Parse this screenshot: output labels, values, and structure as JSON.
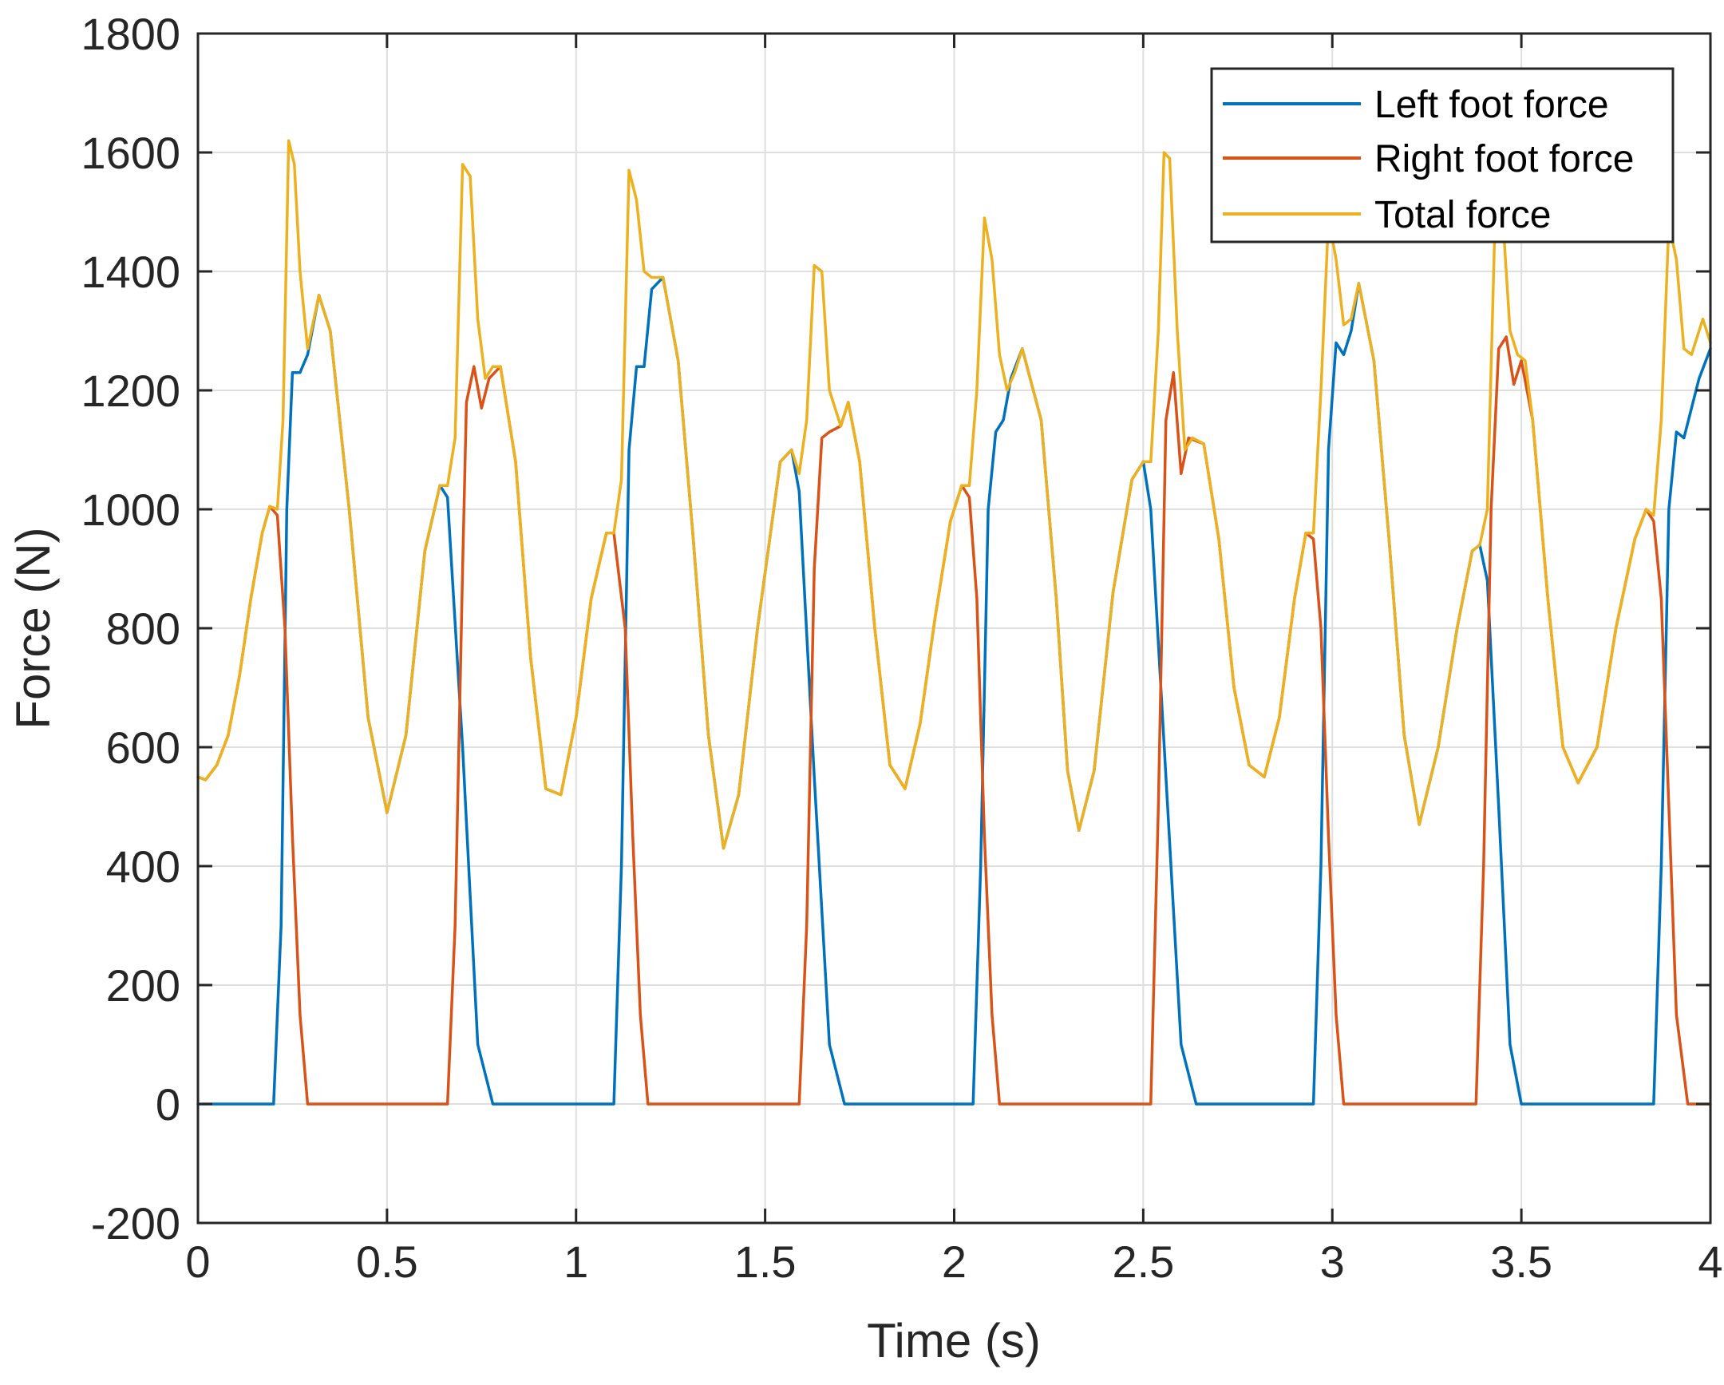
{
  "chart_data": {
    "type": "line",
    "title": "",
    "xlabel": "Time (s)",
    "ylabel": "Force (N)",
    "xlim": [
      0,
      4
    ],
    "ylim": [
      -200,
      1800
    ],
    "xticks": [
      0,
      0.5,
      1,
      1.5,
      2,
      2.5,
      3,
      3.5,
      4
    ],
    "xtick_labels": [
      "0",
      "0.5",
      "1",
      "1.5",
      "2",
      "2.5",
      "3",
      "3.5",
      "4"
    ],
    "yticks": [
      -200,
      0,
      200,
      400,
      600,
      800,
      1000,
      1200,
      1400,
      1600,
      1800
    ],
    "ytick_labels": [
      "-200",
      "0",
      "200",
      "400",
      "600",
      "800",
      "1000",
      "1200",
      "1400",
      "1600",
      "1800"
    ],
    "grid": true,
    "legend_position": "top-right",
    "series": [
      {
        "name": "Left foot force",
        "color": "#0072BD",
        "points": [
          [
            0.0,
            0
          ],
          [
            0.19,
            0
          ],
          [
            0.2,
            0
          ],
          [
            0.22,
            300
          ],
          [
            0.235,
            1000
          ],
          [
            0.25,
            1230
          ],
          [
            0.27,
            1230
          ],
          [
            0.29,
            1260
          ],
          [
            0.32,
            1360
          ],
          [
            0.35,
            1300
          ],
          [
            0.4,
            1000
          ],
          [
            0.45,
            650
          ],
          [
            0.5,
            490
          ],
          [
            0.55,
            620
          ],
          [
            0.6,
            930
          ],
          [
            0.64,
            1040
          ],
          [
            0.66,
            1020
          ],
          [
            0.7,
            600
          ],
          [
            0.74,
            100
          ],
          [
            0.78,
            0
          ],
          [
            1.1,
            0
          ],
          [
            1.12,
            400
          ],
          [
            1.14,
            1100
          ],
          [
            1.16,
            1240
          ],
          [
            1.18,
            1240
          ],
          [
            1.2,
            1370
          ],
          [
            1.23,
            1390
          ],
          [
            1.27,
            1250
          ],
          [
            1.31,
            950
          ],
          [
            1.35,
            620
          ],
          [
            1.39,
            430
          ],
          [
            1.43,
            520
          ],
          [
            1.48,
            800
          ],
          [
            1.54,
            1080
          ],
          [
            1.57,
            1100
          ],
          [
            1.59,
            1030
          ],
          [
            1.63,
            550
          ],
          [
            1.67,
            100
          ],
          [
            1.71,
            0
          ],
          [
            2.05,
            0
          ],
          [
            2.07,
            400
          ],
          [
            2.09,
            1000
          ],
          [
            2.11,
            1130
          ],
          [
            2.13,
            1150
          ],
          [
            2.15,
            1220
          ],
          [
            2.18,
            1270
          ],
          [
            2.23,
            1150
          ],
          [
            2.27,
            850
          ],
          [
            2.3,
            560
          ],
          [
            2.33,
            460
          ],
          [
            2.37,
            560
          ],
          [
            2.42,
            860
          ],
          [
            2.47,
            1050
          ],
          [
            2.5,
            1080
          ],
          [
            2.52,
            1000
          ],
          [
            2.56,
            550
          ],
          [
            2.6,
            100
          ],
          [
            2.64,
            0
          ],
          [
            2.95,
            0
          ],
          [
            2.97,
            400
          ],
          [
            2.99,
            1100
          ],
          [
            3.01,
            1280
          ],
          [
            3.03,
            1260
          ],
          [
            3.05,
            1300
          ],
          [
            3.07,
            1380
          ],
          [
            3.11,
            1250
          ],
          [
            3.15,
            950
          ],
          [
            3.19,
            620
          ],
          [
            3.23,
            470
          ],
          [
            3.28,
            600
          ],
          [
            3.33,
            800
          ],
          [
            3.37,
            930
          ],
          [
            3.39,
            940
          ],
          [
            3.41,
            880
          ],
          [
            3.44,
            500
          ],
          [
            3.47,
            100
          ],
          [
            3.5,
            0
          ],
          [
            3.85,
            0
          ],
          [
            3.87,
            400
          ],
          [
            3.89,
            1000
          ],
          [
            3.91,
            1130
          ],
          [
            3.93,
            1120
          ],
          [
            3.95,
            1170
          ],
          [
            3.97,
            1220
          ],
          [
            4.0,
            1270
          ]
        ]
      },
      {
        "name": "Right foot force",
        "color": "#D95319",
        "points": [
          [
            0.0,
            550
          ],
          [
            0.02,
            545
          ],
          [
            0.05,
            570
          ],
          [
            0.08,
            620
          ],
          [
            0.11,
            720
          ],
          [
            0.14,
            850
          ],
          [
            0.17,
            960
          ],
          [
            0.19,
            1005
          ],
          [
            0.21,
            990
          ],
          [
            0.23,
            800
          ],
          [
            0.25,
            450
          ],
          [
            0.27,
            150
          ],
          [
            0.29,
            0
          ],
          [
            0.66,
            0
          ],
          [
            0.68,
            300
          ],
          [
            0.7,
            900
          ],
          [
            0.71,
            1180
          ],
          [
            0.73,
            1240
          ],
          [
            0.75,
            1170
          ],
          [
            0.77,
            1220
          ],
          [
            0.8,
            1240
          ],
          [
            0.84,
            1080
          ],
          [
            0.88,
            750
          ],
          [
            0.92,
            530
          ],
          [
            0.96,
            520
          ],
          [
            1.0,
            650
          ],
          [
            1.04,
            850
          ],
          [
            1.08,
            960
          ],
          [
            1.1,
            960
          ],
          [
            1.13,
            800
          ],
          [
            1.15,
            450
          ],
          [
            1.17,
            150
          ],
          [
            1.19,
            0
          ],
          [
            1.59,
            0
          ],
          [
            1.61,
            300
          ],
          [
            1.63,
            900
          ],
          [
            1.65,
            1120
          ],
          [
            1.67,
            1130
          ],
          [
            1.7,
            1140
          ],
          [
            1.72,
            1180
          ],
          [
            1.75,
            1080
          ],
          [
            1.79,
            800
          ],
          [
            1.83,
            570
          ],
          [
            1.87,
            530
          ],
          [
            1.91,
            640
          ],
          [
            1.95,
            820
          ],
          [
            1.99,
            980
          ],
          [
            2.02,
            1040
          ],
          [
            2.04,
            1020
          ],
          [
            2.06,
            850
          ],
          [
            2.08,
            450
          ],
          [
            2.1,
            150
          ],
          [
            2.12,
            0
          ],
          [
            2.52,
            0
          ],
          [
            2.54,
            500
          ],
          [
            2.56,
            1150
          ],
          [
            2.58,
            1230
          ],
          [
            2.6,
            1060
          ],
          [
            2.62,
            1120
          ],
          [
            2.66,
            1110
          ],
          [
            2.7,
            950
          ],
          [
            2.74,
            700
          ],
          [
            2.78,
            570
          ],
          [
            2.82,
            550
          ],
          [
            2.86,
            650
          ],
          [
            2.9,
            850
          ],
          [
            2.93,
            960
          ],
          [
            2.95,
            950
          ],
          [
            2.97,
            800
          ],
          [
            2.99,
            450
          ],
          [
            3.01,
            150
          ],
          [
            3.03,
            0
          ],
          [
            3.38,
            0
          ],
          [
            3.4,
            400
          ],
          [
            3.42,
            1000
          ],
          [
            3.44,
            1270
          ],
          [
            3.46,
            1290
          ],
          [
            3.48,
            1210
          ],
          [
            3.5,
            1250
          ],
          [
            3.53,
            1150
          ],
          [
            3.57,
            850
          ],
          [
            3.61,
            600
          ],
          [
            3.65,
            540
          ],
          [
            3.7,
            600
          ],
          [
            3.75,
            800
          ],
          [
            3.8,
            950
          ],
          [
            3.83,
            1000
          ],
          [
            3.85,
            980
          ],
          [
            3.87,
            850
          ],
          [
            3.89,
            500
          ],
          [
            3.91,
            150
          ],
          [
            3.94,
            0
          ],
          [
            4.0,
            0
          ]
        ]
      },
      {
        "name": "Total force",
        "color": "#EDB120",
        "points": [
          [
            0.0,
            550
          ],
          [
            0.02,
            545
          ],
          [
            0.05,
            570
          ],
          [
            0.08,
            620
          ],
          [
            0.11,
            720
          ],
          [
            0.14,
            850
          ],
          [
            0.17,
            960
          ],
          [
            0.19,
            1005
          ],
          [
            0.21,
            1000
          ],
          [
            0.225,
            1150
          ],
          [
            0.24,
            1620
          ],
          [
            0.255,
            1580
          ],
          [
            0.27,
            1400
          ],
          [
            0.29,
            1270
          ],
          [
            0.32,
            1360
          ],
          [
            0.35,
            1300
          ],
          [
            0.4,
            1000
          ],
          [
            0.45,
            650
          ],
          [
            0.5,
            490
          ],
          [
            0.55,
            620
          ],
          [
            0.6,
            930
          ],
          [
            0.64,
            1040
          ],
          [
            0.66,
            1040
          ],
          [
            0.68,
            1120
          ],
          [
            0.7,
            1580
          ],
          [
            0.72,
            1560
          ],
          [
            0.74,
            1320
          ],
          [
            0.76,
            1220
          ],
          [
            0.78,
            1240
          ],
          [
            0.8,
            1240
          ],
          [
            0.84,
            1080
          ],
          [
            0.88,
            750
          ],
          [
            0.92,
            530
          ],
          [
            0.96,
            520
          ],
          [
            1.0,
            650
          ],
          [
            1.04,
            850
          ],
          [
            1.08,
            960
          ],
          [
            1.1,
            960
          ],
          [
            1.12,
            1050
          ],
          [
            1.14,
            1570
          ],
          [
            1.16,
            1520
          ],
          [
            1.18,
            1400
          ],
          [
            1.2,
            1390
          ],
          [
            1.23,
            1390
          ],
          [
            1.27,
            1250
          ],
          [
            1.31,
            950
          ],
          [
            1.35,
            620
          ],
          [
            1.39,
            430
          ],
          [
            1.43,
            520
          ],
          [
            1.48,
            800
          ],
          [
            1.54,
            1080
          ],
          [
            1.57,
            1100
          ],
          [
            1.59,
            1060
          ],
          [
            1.61,
            1150
          ],
          [
            1.63,
            1410
          ],
          [
            1.65,
            1400
          ],
          [
            1.67,
            1200
          ],
          [
            1.7,
            1140
          ],
          [
            1.72,
            1180
          ],
          [
            1.75,
            1080
          ],
          [
            1.79,
            800
          ],
          [
            1.83,
            570
          ],
          [
            1.87,
            530
          ],
          [
            1.91,
            640
          ],
          [
            1.95,
            820
          ],
          [
            1.99,
            980
          ],
          [
            2.02,
            1040
          ],
          [
            2.04,
            1040
          ],
          [
            2.06,
            1200
          ],
          [
            2.08,
            1490
          ],
          [
            2.1,
            1420
          ],
          [
            2.12,
            1260
          ],
          [
            2.14,
            1200
          ],
          [
            2.16,
            1230
          ],
          [
            2.18,
            1270
          ],
          [
            2.23,
            1150
          ],
          [
            2.27,
            850
          ],
          [
            2.3,
            560
          ],
          [
            2.33,
            460
          ],
          [
            2.37,
            560
          ],
          [
            2.42,
            860
          ],
          [
            2.47,
            1050
          ],
          [
            2.5,
            1080
          ],
          [
            2.52,
            1080
          ],
          [
            2.54,
            1300
          ],
          [
            2.555,
            1600
          ],
          [
            2.57,
            1590
          ],
          [
            2.59,
            1300
          ],
          [
            2.61,
            1100
          ],
          [
            2.63,
            1120
          ],
          [
            2.66,
            1110
          ],
          [
            2.7,
            950
          ],
          [
            2.74,
            700
          ],
          [
            2.78,
            570
          ],
          [
            2.82,
            550
          ],
          [
            2.86,
            650
          ],
          [
            2.9,
            850
          ],
          [
            2.93,
            960
          ],
          [
            2.95,
            960
          ],
          [
            2.97,
            1200
          ],
          [
            2.99,
            1490
          ],
          [
            3.01,
            1420
          ],
          [
            3.03,
            1310
          ],
          [
            3.05,
            1320
          ],
          [
            3.07,
            1380
          ],
          [
            3.11,
            1250
          ],
          [
            3.15,
            950
          ],
          [
            3.19,
            620
          ],
          [
            3.23,
            470
          ],
          [
            3.28,
            600
          ],
          [
            3.33,
            800
          ],
          [
            3.37,
            930
          ],
          [
            3.39,
            940
          ],
          [
            3.41,
            1000
          ],
          [
            3.43,
            1480
          ],
          [
            3.45,
            1500
          ],
          [
            3.47,
            1300
          ],
          [
            3.49,
            1260
          ],
          [
            3.51,
            1250
          ],
          [
            3.53,
            1150
          ],
          [
            3.57,
            850
          ],
          [
            3.61,
            600
          ],
          [
            3.65,
            540
          ],
          [
            3.7,
            600
          ],
          [
            3.75,
            800
          ],
          [
            3.8,
            950
          ],
          [
            3.83,
            1000
          ],
          [
            3.85,
            990
          ],
          [
            3.87,
            1150
          ],
          [
            3.89,
            1480
          ],
          [
            3.91,
            1420
          ],
          [
            3.93,
            1270
          ],
          [
            3.95,
            1260
          ],
          [
            3.98,
            1320
          ],
          [
            4.0,
            1280
          ]
        ]
      }
    ]
  }
}
